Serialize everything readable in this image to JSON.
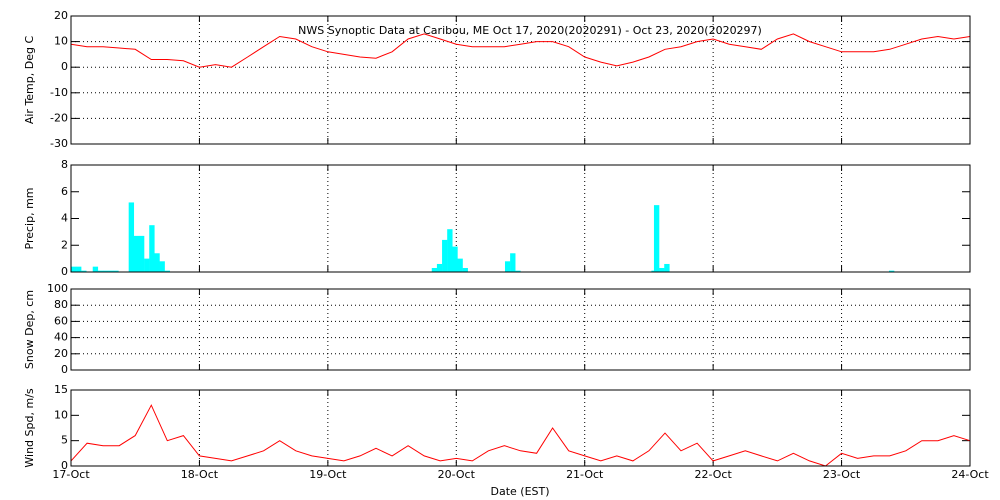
{
  "chart_data": [
    {
      "type": "line",
      "title": "NWS Synoptic Data at Caribou, ME   Oct 17, 2020(2020291) - Oct 23, 2020(2020297)",
      "ylabel": "Air Temp, Deg C",
      "ylim": [
        -30,
        20
      ],
      "yticks": [
        -30,
        -20,
        -10,
        0,
        10,
        20
      ],
      "ygrid": true,
      "series": [
        {
          "color": "#ff0000",
          "x": [
            17,
            17.125,
            17.25,
            17.375,
            17.5,
            17.625,
            17.75,
            17.875,
            18,
            18.125,
            18.25,
            18.375,
            18.5,
            18.625,
            18.75,
            18.875,
            19,
            19.125,
            19.25,
            19.375,
            19.5,
            19.625,
            19.75,
            19.875,
            20,
            20.125,
            20.25,
            20.375,
            20.5,
            20.625,
            20.75,
            20.875,
            21,
            21.125,
            21.25,
            21.375,
            21.5,
            21.625,
            21.75,
            21.875,
            22,
            22.125,
            22.25,
            22.375,
            22.5,
            22.625,
            22.75,
            22.875,
            23,
            23.125,
            23.25,
            23.375,
            23.5,
            23.625,
            23.75,
            23.875,
            24
          ],
          "values": [
            9,
            8,
            8,
            7.5,
            7,
            3,
            3,
            2.5,
            0,
            1,
            0,
            4,
            8,
            12,
            11,
            8,
            6,
            5,
            4,
            3.5,
            6,
            11,
            13,
            11,
            9,
            8,
            8,
            8,
            9,
            10,
            10,
            8,
            4,
            2,
            0.5,
            2,
            4,
            7,
            8,
            10,
            11,
            9,
            8,
            7,
            11,
            13,
            10,
            8,
            6,
            6,
            6,
            7,
            9,
            11,
            12,
            11,
            12
          ]
        }
      ]
    },
    {
      "type": "bar",
      "ylabel": "Precip, mm",
      "ylim": [
        0,
        8
      ],
      "yticks": [
        0,
        2,
        4,
        6,
        8
      ],
      "ygrid": false,
      "series": [
        {
          "color": "#00ffff",
          "x": [
            17.02,
            17.06,
            17.1,
            17.19,
            17.23,
            17.27,
            17.31,
            17.35,
            17.47,
            17.51,
            17.55,
            17.59,
            17.63,
            17.67,
            17.71,
            17.75,
            19.83,
            19.87,
            19.91,
            19.95,
            19.99,
            20.03,
            20.07,
            20.4,
            20.44,
            20.48,
            21.54,
            21.56,
            21.6,
            21.64,
            23.39
          ],
          "values": [
            0.4,
            0.4,
            0.1,
            0.4,
            0.1,
            0.1,
            0.1,
            0.1,
            5.2,
            2.7,
            2.7,
            1.0,
            3.5,
            1.4,
            0.8,
            0.1,
            0.3,
            0.6,
            2.4,
            3.2,
            1.9,
            1.0,
            0.3,
            0.8,
            1.4,
            0.1,
            0.1,
            5.0,
            0.3,
            0.6,
            0.1
          ]
        }
      ]
    },
    {
      "type": "empty",
      "ylabel": "Snow Dep, cm",
      "ylim": [
        0,
        100
      ],
      "yticks": [
        0,
        20,
        40,
        60,
        80,
        100
      ],
      "ygrid": true
    },
    {
      "type": "line",
      "ylabel": "Wind Spd, m/s",
      "xlabel": "Date (EST)",
      "ylim": [
        0,
        15
      ],
      "yticks": [
        0,
        5,
        10,
        15
      ],
      "ygrid": false,
      "xlim": [
        17,
        24
      ],
      "xticks": [
        {
          "value": 17,
          "label": "17-Oct"
        },
        {
          "value": 18,
          "label": "18-Oct"
        },
        {
          "value": 19,
          "label": "19-Oct"
        },
        {
          "value": 20,
          "label": "20-Oct"
        },
        {
          "value": 21,
          "label": "21-Oct"
        },
        {
          "value": 22,
          "label": "22-Oct"
        },
        {
          "value": 23,
          "label": "23-Oct"
        },
        {
          "value": 24,
          "label": "24-Oct"
        }
      ],
      "series": [
        {
          "color": "#ff0000",
          "x": [
            17,
            17.125,
            17.25,
            17.375,
            17.5,
            17.625,
            17.75,
            17.875,
            18,
            18.125,
            18.25,
            18.375,
            18.5,
            18.625,
            18.75,
            18.875,
            19,
            19.125,
            19.25,
            19.375,
            19.5,
            19.625,
            19.75,
            19.875,
            20,
            20.125,
            20.25,
            20.375,
            20.5,
            20.625,
            20.75,
            20.875,
            21,
            21.125,
            21.25,
            21.375,
            21.5,
            21.625,
            21.75,
            21.875,
            22,
            22.125,
            22.25,
            22.375,
            22.5,
            22.625,
            22.75,
            22.875,
            23,
            23.125,
            23.25,
            23.375,
            23.5,
            23.625,
            23.75,
            23.875,
            24
          ],
          "values": [
            1,
            4.5,
            4,
            4,
            6,
            12,
            5,
            6,
            2,
            1.5,
            1,
            2,
            3,
            5,
            3,
            2,
            1.5,
            1,
            2,
            3.5,
            2,
            4,
            2,
            1,
            1.5,
            1,
            3,
            4,
            3,
            2.5,
            7.5,
            3,
            2,
            1,
            2,
            1,
            3,
            6.5,
            3,
            4.5,
            1,
            2,
            3,
            2,
            1,
            2.5,
            1,
            0,
            2.5,
            1.5,
            2,
            2,
            3,
            5,
            5,
            6,
            5
          ]
        }
      ]
    }
  ]
}
